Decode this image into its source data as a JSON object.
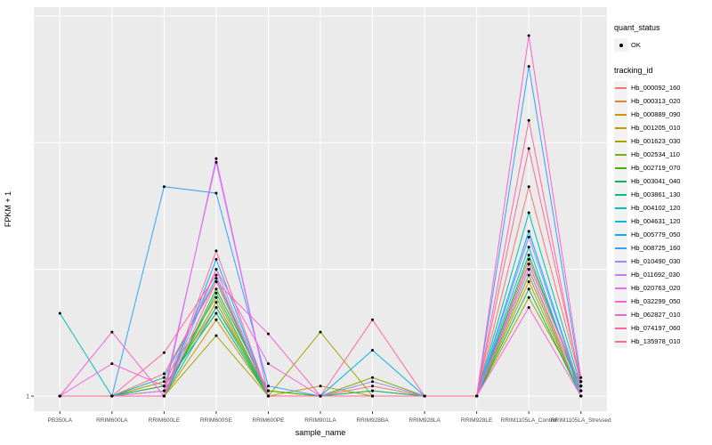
{
  "figure": {
    "background": "#FFFFFF",
    "panel_background": "#EBEBEB",
    "grid_color": "#FFFFFF",
    "point_color": "#000000",
    "tick_label_color": "#4D4D4D",
    "axis_title_color": "#000000"
  },
  "legend": {
    "quant_title": "quant_status",
    "quant_items": [
      {
        "label": "OK"
      }
    ],
    "tracking_title": "tracking_id"
  },
  "chart_data": {
    "type": "line",
    "title": "",
    "x_label": "sample_name",
    "y_label": "FPKM + 1",
    "y_scale": "log10",
    "y_domain": [
      1,
      1000
    ],
    "y_ticks": [
      1
    ],
    "y_tick_labels": [
      "1"
    ],
    "grid": true,
    "legend_position": "right",
    "categories": [
      "PB350LA",
      "RRIM600LA",
      "RRIM600LE",
      "RRIM600SE",
      "RRIM600PE",
      "RRIM901LA",
      "RRIM928BA",
      "RRIM928LA",
      "RRIM928LE",
      "RRIM1105LA_Control",
      "RRIM1105LA_Stressed"
    ],
    "series": [
      {
        "name": "Hb_000092_160",
        "color": "#F8766D",
        "values": [
          1,
          1,
          1.5,
          8,
          1,
          1,
          1.2,
          1,
          1,
          45,
          1.3
        ]
      },
      {
        "name": "Hb_000313_020",
        "color": "#EA8331",
        "values": [
          1,
          1,
          1.2,
          5,
          1.1,
          1,
          1,
          1,
          1,
          12,
          1.2
        ]
      },
      {
        "name": "Hb_000889_090",
        "color": "#D89000",
        "values": [
          1,
          1,
          1,
          4,
          1,
          1,
          1.1,
          1,
          1,
          10,
          1.1
        ]
      },
      {
        "name": "Hb_001205_010",
        "color": "#C09B00",
        "values": [
          1,
          1,
          1.3,
          6,
          1,
          1.2,
          1,
          1,
          1,
          8,
          1
        ]
      },
      {
        "name": "Hb_001623_030",
        "color": "#A3A500",
        "values": [
          1,
          1,
          1,
          3,
          1,
          3.2,
          1,
          1,
          1,
          6,
          1.1
        ]
      },
      {
        "name": "Hb_002534_110",
        "color": "#7CAE00",
        "values": [
          1,
          1,
          1.1,
          5.5,
          1,
          1,
          1.4,
          1,
          1,
          9,
          1
        ]
      },
      {
        "name": "Hb_002719_070",
        "color": "#39B600",
        "values": [
          1,
          1,
          1,
          7,
          1.1,
          1,
          1,
          1,
          1,
          11,
          1.2
        ]
      },
      {
        "name": "Hb_003041_040",
        "color": "#00BB4E",
        "values": [
          1,
          1,
          1.2,
          4.5,
          1,
          1,
          1,
          1,
          1,
          7,
          1
        ]
      },
      {
        "name": "Hb_003861_130",
        "color": "#00C081",
        "values": [
          1,
          1,
          1,
          6.5,
          1,
          1,
          1.1,
          1,
          1,
          13,
          1.1
        ]
      },
      {
        "name": "Hb_004102_120",
        "color": "#00C0AF",
        "values": [
          4.5,
          1,
          1,
          5,
          1,
          1,
          1,
          1,
          1,
          28,
          1.2
        ]
      },
      {
        "name": "Hb_004631_120",
        "color": "#00BCD8",
        "values": [
          1,
          1,
          1.4,
          8.5,
          1,
          1,
          1,
          1,
          1,
          15,
          1
        ]
      },
      {
        "name": "Hb_005779_050",
        "color": "#00B0F6",
        "values": [
          1,
          1,
          1,
          12,
          1,
          1,
          2.3,
          1,
          1,
          20,
          1.1
        ]
      },
      {
        "name": "Hb_008725_160",
        "color": "#35A2FF",
        "values": [
          1,
          1,
          45,
          40,
          1.2,
          1,
          1,
          1,
          1,
          400,
          1.3
        ]
      },
      {
        "name": "Hb_010490_030",
        "color": "#9590FF",
        "values": [
          1,
          1,
          1,
          10,
          1,
          1,
          1.3,
          1,
          1,
          18,
          1.1
        ]
      },
      {
        "name": "Hb_011692_030",
        "color": "#C77CFF",
        "values": [
          1,
          1,
          1.1,
          70,
          1,
          1,
          1,
          1,
          1,
          10,
          1
        ]
      },
      {
        "name": "Hb_020763_020",
        "color": "#E76BF3",
        "values": [
          1,
          1,
          1,
          75,
          1,
          1,
          1,
          1,
          1,
          11,
          1.2
        ]
      },
      {
        "name": "Hb_032299_050",
        "color": "#FA62DB",
        "values": [
          1,
          1.8,
          1.2,
          10,
          1.8,
          1,
          1,
          1,
          1,
          5,
          1
        ]
      },
      {
        "name": "Hb_062827_010",
        "color": "#FF61CC",
        "values": [
          1,
          3.2,
          1,
          8,
          3.1,
          1,
          1,
          1,
          1,
          700,
          1.4
        ]
      },
      {
        "name": "Hb_074197_060",
        "color": "#FF67A4",
        "values": [
          1,
          1,
          1,
          14,
          1,
          1,
          4,
          1,
          1,
          150,
          1.2
        ]
      },
      {
        "name": "Hb_135978_010",
        "color": "#FF6C92",
        "values": [
          1,
          1,
          2.2,
          9,
          1,
          1,
          1,
          1,
          1,
          90,
          1.3
        ]
      }
    ]
  }
}
